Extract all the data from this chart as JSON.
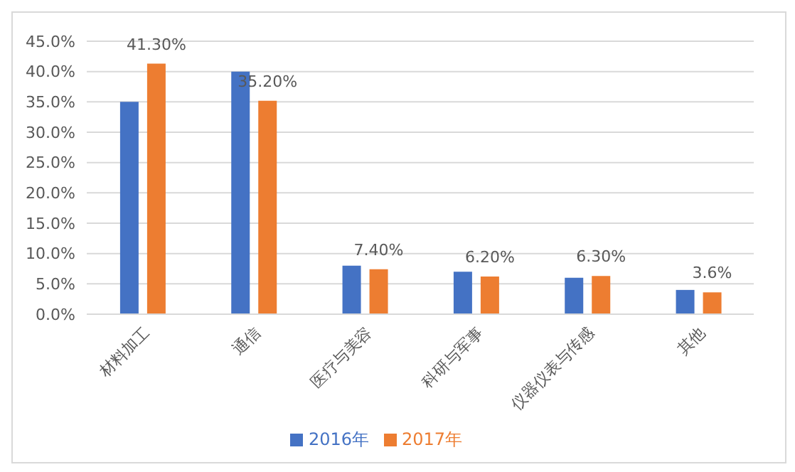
{
  "chart_data": {
    "type": "bar",
    "categories": [
      "材料加工",
      "通信",
      "医疗与美容",
      "科研与军事",
      "仪器仪表与传感",
      "其他"
    ],
    "series": [
      {
        "name": "2016年",
        "color": "#4472c4",
        "values": [
          35,
          40,
          8,
          7,
          6,
          4
        ]
      },
      {
        "name": "2017年",
        "color": "#ed7d31",
        "values": [
          41.3,
          35.2,
          7.4,
          6.2,
          6.3,
          3.6
        ],
        "value_labels": [
          "41.30%",
          "35.20%",
          "7.40%",
          "6.20%",
          "6.30%",
          "3.6%"
        ]
      }
    ],
    "ylim": [
      0,
      45
    ],
    "yticks": [
      {
        "value": 0,
        "label": "0.0%"
      },
      {
        "value": 5,
        "label": "5.0%"
      },
      {
        "value": 10,
        "label": "10.0%"
      },
      {
        "value": 15,
        "label": "15.0%"
      },
      {
        "value": 20,
        "label": "20.0%"
      },
      {
        "value": 25,
        "label": "25.0%"
      },
      {
        "value": 30,
        "label": "30.0%"
      },
      {
        "value": 35,
        "label": "35.0%"
      },
      {
        "value": 40,
        "label": "40.0%"
      },
      {
        "value": 45,
        "label": "45.0%"
      }
    ],
    "grid": "y",
    "legend": "bottom"
  }
}
